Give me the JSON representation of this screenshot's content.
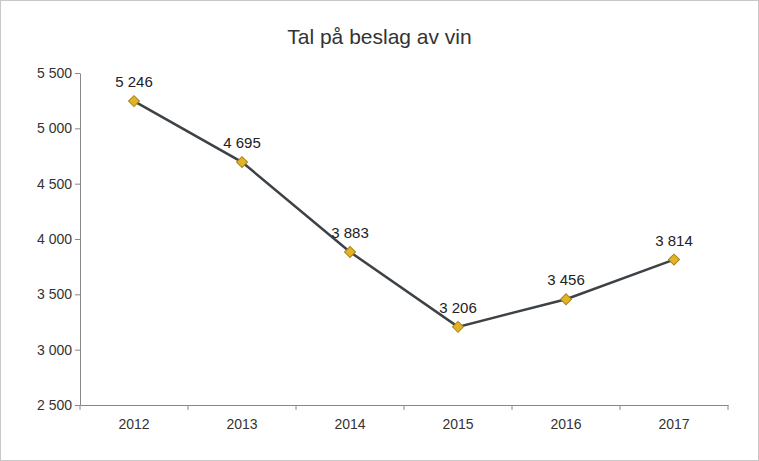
{
  "chart_data": {
    "type": "line",
    "title": "Tal på beslag av vin",
    "categories": [
      "2012",
      "2013",
      "2014",
      "2015",
      "2016",
      "2017"
    ],
    "values": [
      5246,
      4695,
      3883,
      3206,
      3456,
      3814
    ],
    "value_labels": [
      "5 246",
      "4 695",
      "3 883",
      "3 206",
      "3 456",
      "3 814"
    ],
    "color": "#3d4247",
    "marker": "diamond",
    "line_style": "solid",
    "data_labels": true,
    "grid": false,
    "ylim": [
      2500,
      5500
    ],
    "yticks": [
      {
        "value": 2500,
        "label": "2 500"
      },
      {
        "value": 3000,
        "label": "3 000"
      },
      {
        "value": 3500,
        "label": "3 500"
      },
      {
        "value": 4000,
        "label": "4 000"
      },
      {
        "value": 4500,
        "label": "4 500"
      },
      {
        "value": 5000,
        "label": "5 000"
      },
      {
        "value": 5500,
        "label": "5 500"
      }
    ]
  }
}
